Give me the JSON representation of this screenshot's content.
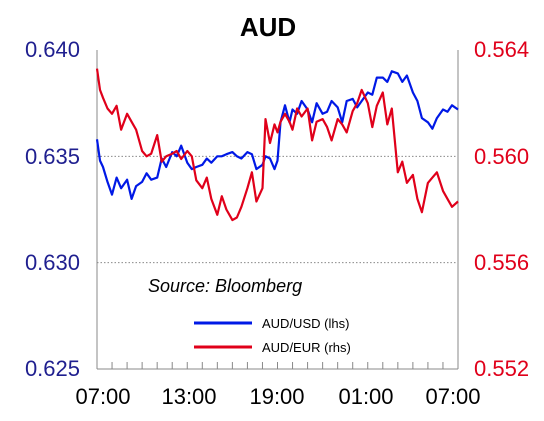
{
  "chart_data": {
    "type": "line",
    "title": "AUD",
    "annotation": "Source: Bloomberg",
    "x_tick_labels": [
      "07:00",
      "13:00",
      "19:00",
      "01:00",
      "07:00"
    ],
    "y_left": {
      "ticks": [
        "0.625",
        "0.630",
        "0.635",
        "0.640"
      ],
      "ylim": [
        0.625,
        0.64
      ],
      "color": "#1f1f8f"
    },
    "y_right": {
      "ticks": [
        "0.552",
        "0.556",
        "0.560",
        "0.564"
      ],
      "ylim": [
        0.552,
        0.564
      ],
      "color": "#e0001a"
    },
    "x_range_hours": [
      0,
      24
    ],
    "grid": "dotted horizontal at 0.630 and 0.635",
    "legend_position": "bottom-right",
    "series": [
      {
        "name": "AUD/USD (lhs)",
        "axis": "left",
        "color": "#0019e6",
        "x": [
          0,
          0.2,
          0.4,
          0.7,
          1,
          1.3,
          1.6,
          2,
          2.3,
          2.6,
          3,
          3.3,
          3.6,
          4,
          4.3,
          4.6,
          5,
          5.3,
          5.6,
          6,
          6.3,
          6.6,
          7,
          7.3,
          7.6,
          8,
          8.3,
          8.6,
          9,
          9.3,
          9.6,
          10,
          10.3,
          10.6,
          11,
          11.2,
          11.5,
          11.8,
          12,
          12.2,
          12.5,
          12.8,
          13,
          13.3,
          13.6,
          14,
          14.3,
          14.6,
          15,
          15.3,
          15.6,
          16,
          16.3,
          16.6,
          17,
          17.3,
          17.6,
          18,
          18.3,
          18.6,
          19,
          19.3,
          19.6,
          20,
          20.3,
          20.6,
          21,
          21.3,
          21.6,
          22,
          22.3,
          22.6,
          23,
          23.3,
          23.6,
          24
        ],
        "values": [
          0.6358,
          0.6348,
          0.6345,
          0.6338,
          0.6332,
          0.634,
          0.6335,
          0.6339,
          0.633,
          0.6336,
          0.6338,
          0.6342,
          0.6339,
          0.634,
          0.6349,
          0.6345,
          0.6352,
          0.635,
          0.6355,
          0.6347,
          0.6344,
          0.6345,
          0.6346,
          0.6349,
          0.6347,
          0.635,
          0.635,
          0.6351,
          0.6352,
          0.635,
          0.6349,
          0.6352,
          0.6351,
          0.6344,
          0.6346,
          0.635,
          0.6349,
          0.6344,
          0.6348,
          0.6366,
          0.6374,
          0.6366,
          0.6372,
          0.637,
          0.6376,
          0.6372,
          0.6366,
          0.6375,
          0.637,
          0.6371,
          0.6376,
          0.6373,
          0.6366,
          0.6376,
          0.6377,
          0.6373,
          0.6376,
          0.638,
          0.6379,
          0.6387,
          0.6387,
          0.6385,
          0.639,
          0.6389,
          0.6385,
          0.6388,
          0.638,
          0.6376,
          0.6368,
          0.6366,
          0.6363,
          0.6368,
          0.6372,
          0.6371,
          0.6374,
          0.6372
        ]
      },
      {
        "name": "AUD/EUR (rhs)",
        "axis": "right",
        "color": "#e0001a",
        "x": [
          0,
          0.2,
          0.4,
          0.7,
          1,
          1.3,
          1.6,
          2,
          2.3,
          2.6,
          3,
          3.3,
          3.6,
          4,
          4.3,
          4.6,
          5,
          5.3,
          5.6,
          6,
          6.3,
          6.6,
          7,
          7.3,
          7.6,
          8,
          8.3,
          8.6,
          9,
          9.3,
          9.6,
          10,
          10.3,
          10.6,
          11,
          11.2,
          11.5,
          11.8,
          12,
          12.2,
          12.5,
          12.8,
          13,
          13.3,
          13.6,
          14,
          14.3,
          14.6,
          15,
          15.3,
          15.6,
          16,
          16.3,
          16.6,
          17,
          17.3,
          17.6,
          18,
          18.3,
          18.6,
          19,
          19.3,
          19.6,
          20,
          20.3,
          20.6,
          21,
          21.3,
          21.6,
          22,
          22.3,
          22.6,
          23,
          23.3,
          23.6,
          24
        ],
        "values": [
          0.5633,
          0.5625,
          0.5622,
          0.5618,
          0.5616,
          0.5619,
          0.561,
          0.5616,
          0.5613,
          0.561,
          0.5602,
          0.56,
          0.5601,
          0.5608,
          0.5598,
          0.56,
          0.5601,
          0.5602,
          0.5599,
          0.5602,
          0.56,
          0.5591,
          0.5588,
          0.5592,
          0.5584,
          0.5578,
          0.5585,
          0.558,
          0.5576,
          0.5577,
          0.5581,
          0.5588,
          0.5594,
          0.5583,
          0.5588,
          0.5614,
          0.5605,
          0.5612,
          0.5609,
          0.5613,
          0.5616,
          0.5613,
          0.561,
          0.5618,
          0.5615,
          0.5618,
          0.5606,
          0.5613,
          0.5614,
          0.5611,
          0.5606,
          0.5614,
          0.5612,
          0.5609,
          0.5617,
          0.562,
          0.5625,
          0.562,
          0.5611,
          0.5619,
          0.5624,
          0.5612,
          0.5618,
          0.5594,
          0.5598,
          0.559,
          0.5593,
          0.5584,
          0.5579,
          0.559,
          0.5592,
          0.5594,
          0.5587,
          0.5584,
          0.5581,
          0.5583
        ]
      }
    ]
  }
}
